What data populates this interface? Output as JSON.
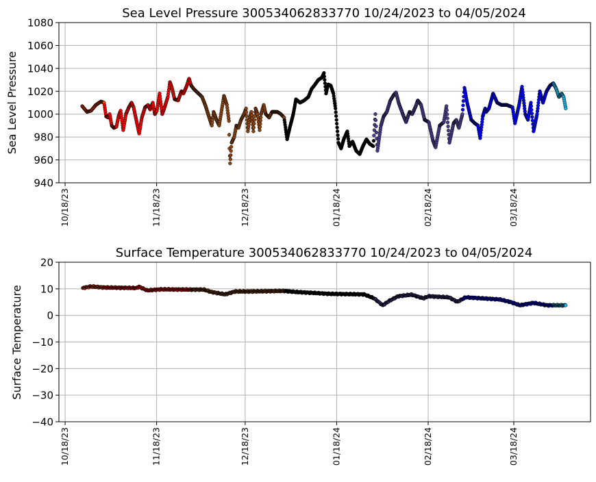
{
  "chart_data": [
    {
      "type": "scatter",
      "title": "Sea Level Pressure 300534062833770  10/24/2023 to 04/05/2024",
      "xlabel": "",
      "ylabel": "Sea Level Pressure",
      "x_unit": "days since 10/18/23",
      "xlim": [
        -2.1,
        178
      ],
      "ylim": [
        940,
        1080
      ],
      "yticks": [
        940,
        960,
        980,
        1000,
        1020,
        1040,
        1060,
        1080
      ],
      "xticks": [
        0,
        31,
        61,
        92,
        123,
        152
      ],
      "xtick_labels": [
        "10/18/23",
        "11/18/23",
        "12/18/23",
        "01/18/24",
        "02/18/24",
        "03/18/24"
      ],
      "grid": true,
      "segments": [
        {
          "color": "#ff4500",
          "from": 5.8,
          "to": 13.2
        },
        {
          "color": "#ff0000",
          "from": 13.2,
          "to": 42.7
        },
        {
          "color": "#8b4513",
          "from": 42.7,
          "to": 74.2
        },
        {
          "color": "#000000",
          "from": 74.2,
          "to": 104.6
        },
        {
          "color": "#483d8b",
          "from": 104.6,
          "to": 134.6
        },
        {
          "color": "#0000ff",
          "from": 134.6,
          "to": 165.4
        },
        {
          "color": "#1eb4e6",
          "from": 165.4,
          "to": 169.7
        }
      ],
      "points": [
        [
          5.8,
          1007
        ],
        [
          7.4,
          1002
        ],
        [
          8.8,
          1003
        ],
        [
          10.4,
          1008
        ],
        [
          12.1,
          1011
        ],
        [
          13.2,
          1010
        ],
        [
          13.9,
          998
        ],
        [
          14.6,
          997
        ],
        [
          15.1,
          1000
        ],
        [
          15.8,
          990
        ],
        [
          16.5,
          988
        ],
        [
          17.4,
          989
        ],
        [
          18.1,
          998
        ],
        [
          18.8,
          1003
        ],
        [
          19.7,
          986
        ],
        [
          20.6,
          1000
        ],
        [
          21.6,
          1006
        ],
        [
          22.5,
          1010
        ],
        [
          23.2,
          1006
        ],
        [
          24.1,
          995
        ],
        [
          25.1,
          983
        ],
        [
          26.0,
          997
        ],
        [
          27.1,
          1006
        ],
        [
          28.1,
          1008
        ],
        [
          28.8,
          1004
        ],
        [
          29.7,
          1010
        ],
        [
          30.4,
          1000
        ],
        [
          31.1,
          1003
        ],
        [
          32.0,
          1018
        ],
        [
          32.9,
          1000
        ],
        [
          33.6,
          1005
        ],
        [
          34.8,
          1015
        ],
        [
          35.5,
          1028
        ],
        [
          36.2,
          1023
        ],
        [
          37.1,
          1013
        ],
        [
          38.3,
          1012
        ],
        [
          39.4,
          1020
        ],
        [
          40.1,
          1018
        ],
        [
          41.1,
          1024
        ],
        [
          42.0,
          1031
        ],
        [
          42.7,
          1025
        ],
        [
          43.6,
          1022
        ],
        [
          45.2,
          1018
        ],
        [
          46.4,
          1015
        ],
        [
          47.6,
          1007
        ],
        [
          48.7,
          998
        ],
        [
          49.7,
          990
        ],
        [
          50.3,
          1002
        ],
        [
          51.3,
          995
        ],
        [
          52.2,
          990
        ],
        [
          53.8,
          1016
        ],
        [
          54.8,
          1008
        ],
        [
          55.5,
          994
        ],
        [
          55.7,
          970
        ],
        [
          55.9,
          957
        ],
        [
          56.4,
          975
        ],
        [
          57.3,
          980
        ],
        [
          58.0,
          990
        ],
        [
          58.7,
          988
        ],
        [
          59.6,
          995
        ],
        [
          60.6,
          1000
        ],
        [
          61.3,
          1005
        ],
        [
          61.9,
          985
        ],
        [
          62.4,
          995
        ],
        [
          63.1,
          1002
        ],
        [
          63.8,
          985
        ],
        [
          64.5,
          1005
        ],
        [
          65.2,
          1000
        ],
        [
          65.9,
          986
        ],
        [
          66.4,
          1000
        ],
        [
          67.3,
          1008
        ],
        [
          68.0,
          1000
        ],
        [
          69.1,
          997
        ],
        [
          70.1,
          1002
        ],
        [
          71.9,
          1002
        ],
        [
          73.1,
          1000
        ],
        [
          74.2,
          997
        ],
        [
          75.2,
          978
        ],
        [
          76.1,
          988
        ],
        [
          77.3,
          1000
        ],
        [
          78.2,
          1013
        ],
        [
          79.6,
          1010
        ],
        [
          81.0,
          1012
        ],
        [
          82.4,
          1015
        ],
        [
          83.5,
          1022
        ],
        [
          84.7,
          1026
        ],
        [
          85.8,
          1030
        ],
        [
          87.0,
          1032
        ],
        [
          87.7,
          1036
        ],
        [
          88.4,
          1018
        ],
        [
          89.1,
          1026
        ],
        [
          90.0,
          1025
        ],
        [
          90.9,
          1018
        ],
        [
          91.6,
          1005
        ],
        [
          92.6,
          975
        ],
        [
          93.5,
          970
        ],
        [
          94.4,
          978
        ],
        [
          95.6,
          985
        ],
        [
          96.3,
          972
        ],
        [
          97.4,
          976
        ],
        [
          98.6,
          968
        ],
        [
          99.8,
          965
        ],
        [
          100.9,
          972
        ],
        [
          102.1,
          978
        ],
        [
          103.2,
          974
        ],
        [
          104.4,
          972
        ],
        [
          105.1,
          1000
        ],
        [
          105.8,
          968
        ],
        [
          107.0,
          990
        ],
        [
          107.9,
          998
        ],
        [
          109.0,
          1002
        ],
        [
          110.2,
          1012
        ],
        [
          111.4,
          1017
        ],
        [
          112.1,
          1019
        ],
        [
          113.0,
          1010
        ],
        [
          114.4,
          1000
        ],
        [
          115.5,
          993
        ],
        [
          116.7,
          1002
        ],
        [
          117.6,
          1000
        ],
        [
          118.8,
          1007
        ],
        [
          119.5,
          1012
        ],
        [
          120.6,
          1008
        ],
        [
          121.8,
          995
        ],
        [
          123.2,
          993
        ],
        [
          124.6,
          977
        ],
        [
          125.5,
          971
        ],
        [
          126.9,
          990
        ],
        [
          128.3,
          993
        ],
        [
          129.2,
          1007
        ],
        [
          130.2,
          975
        ],
        [
          131.6,
          992
        ],
        [
          132.5,
          995
        ],
        [
          133.4,
          988
        ],
        [
          134.6,
          1000
        ],
        [
          135.3,
          1023
        ],
        [
          136.2,
          1010
        ],
        [
          137.6,
          995
        ],
        [
          138.8,
          992
        ],
        [
          139.9,
          990
        ],
        [
          140.6,
          979
        ],
        [
          141.5,
          998
        ],
        [
          142.3,
          1005
        ],
        [
          142.7,
          1002
        ],
        [
          143.6,
          1005
        ],
        [
          145.0,
          1018
        ],
        [
          146.4,
          1010
        ],
        [
          147.8,
          1008
        ],
        [
          149.7,
          1008
        ],
        [
          151.6,
          1006
        ],
        [
          152.4,
          992
        ],
        [
          153.8,
          1008
        ],
        [
          154.8,
          1024
        ],
        [
          155.9,
          1000
        ],
        [
          156.8,
          995
        ],
        [
          157.8,
          1010
        ],
        [
          158.7,
          985
        ],
        [
          159.9,
          1000
        ],
        [
          160.8,
          1020
        ],
        [
          161.9,
          1010
        ],
        [
          163.1,
          1020
        ],
        [
          164.3,
          1025
        ],
        [
          165.4,
          1027
        ],
        [
          166.4,
          1022
        ],
        [
          167.3,
          1015
        ],
        [
          168.2,
          1018
        ],
        [
          168.9,
          1015
        ],
        [
          169.6,
          1005
        ]
      ]
    },
    {
      "type": "scatter",
      "title": "Surface Temperature 300534062833770  10/24/2023 to 04/05/2024",
      "xlabel": "",
      "ylabel": "Surface Temperature",
      "x_unit": "days since 10/18/23",
      "xlim": [
        -2.1,
        178
      ],
      "ylim": [
        -40,
        20
      ],
      "yticks": [
        -40,
        -30,
        -20,
        -10,
        0,
        10,
        20
      ],
      "ytick_labels": [
        "−40",
        "−30",
        "−20",
        "−10",
        "0",
        "10",
        "20"
      ],
      "xticks": [
        0,
        31,
        61,
        92,
        123,
        152
      ],
      "xtick_labels": [
        "10/18/23",
        "11/18/23",
        "12/18/23",
        "01/18/24",
        "02/18/24",
        "03/18/24"
      ],
      "grid": true,
      "segments": [
        {
          "color": "#ff4500",
          "from": 5.8,
          "to": 12.9
        },
        {
          "color": "#ff0000",
          "from": 12.9,
          "to": 42.7
        },
        {
          "color": "#8b4513",
          "from": 42.7,
          "to": 74.3
        },
        {
          "color": "#000000",
          "from": 74.3,
          "to": 104.7
        },
        {
          "color": "#483d8b",
          "from": 104.7,
          "to": 134.6
        },
        {
          "color": "#0000ff",
          "from": 134.6,
          "to": 165.4
        },
        {
          "color": "#1eb4e6",
          "from": 165.4,
          "to": 169.7
        }
      ],
      "points": [
        [
          6.0,
          10.3
        ],
        [
          8.8,
          10.9
        ],
        [
          12.9,
          10.5
        ],
        [
          24.3,
          10.3
        ],
        [
          25.0,
          10.8
        ],
        [
          27.8,
          9.4
        ],
        [
          32.4,
          9.8
        ],
        [
          42.7,
          9.7
        ],
        [
          47.0,
          9.7
        ],
        [
          49.6,
          8.8
        ],
        [
          54.2,
          7.9
        ],
        [
          57.6,
          9.0
        ],
        [
          62.2,
          9.0
        ],
        [
          74.3,
          9.2
        ],
        [
          78.3,
          8.8
        ],
        [
          89.8,
          8.1
        ],
        [
          101.3,
          7.9
        ],
        [
          104.7,
          6.4
        ],
        [
          107.6,
          3.8
        ],
        [
          109.9,
          5.5
        ],
        [
          112.8,
          7.2
        ],
        [
          117.4,
          7.8
        ],
        [
          121.4,
          6.4
        ],
        [
          123.1,
          7.2
        ],
        [
          130.0,
          6.8
        ],
        [
          132.9,
          5.1
        ],
        [
          135.7,
          6.8
        ],
        [
          147.2,
          6.0
        ],
        [
          150.7,
          5.1
        ],
        [
          154.1,
          3.8
        ],
        [
          158.7,
          4.7
        ],
        [
          163.3,
          3.8
        ],
        [
          169.6,
          3.8
        ]
      ]
    }
  ]
}
